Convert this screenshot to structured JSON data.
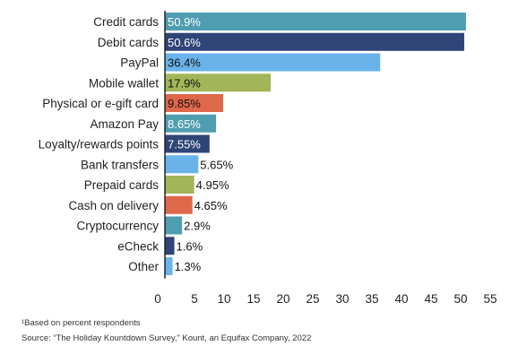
{
  "chart_data": {
    "type": "bar",
    "orientation": "horizontal",
    "categories": [
      "Credit cards",
      "Debit cards",
      "PayPal",
      "Mobile wallet",
      "Physical or e-gift card",
      "Amazon Pay",
      "Loyalty/rewards points",
      "Bank transfers",
      "Prepaid cards",
      "Cash on delivery",
      "Cryptocurrency",
      "eCheck",
      "Other"
    ],
    "values": [
      50.9,
      50.6,
      36.4,
      17.9,
      9.85,
      8.65,
      7.55,
      5.65,
      4.95,
      4.65,
      2.9,
      1.6,
      1.3
    ],
    "value_labels": [
      "50.9%",
      "50.6%",
      "36.4%",
      "17.9%",
      "9.85%",
      "8.65%",
      "7.55%",
      "5.65%",
      "4.95%",
      "4.65%",
      "2.9%",
      "1.6%",
      "1.3%"
    ],
    "colors": [
      "#4f9db1",
      "#2f4577",
      "#69b3ea",
      "#a2b558",
      "#e0684a",
      "#4f9db1",
      "#2f4577",
      "#69b3ea",
      "#a2b558",
      "#e0684a",
      "#4f9db1",
      "#2f4577",
      "#69b3ea"
    ],
    "label_colors": [
      "#ffffff",
      "#ffffff",
      "#111111",
      "#111111",
      "#111111",
      "#ffffff",
      "#ffffff",
      "#111111",
      "#111111",
      "#111111",
      "#111111",
      "#111111",
      "#111111"
    ],
    "xticks": [
      0,
      5,
      10,
      15,
      20,
      25,
      30,
      35,
      40,
      45,
      50,
      55
    ],
    "xlim": [
      0,
      55
    ],
    "grid": false,
    "title": "",
    "xlabel": "",
    "ylabel": ""
  },
  "notes": {
    "footnote": "¹Based on percent respondents",
    "source": "Source: “The Holiday Kountdown Survey,” Kount, an Equifax Company, 2022"
  }
}
